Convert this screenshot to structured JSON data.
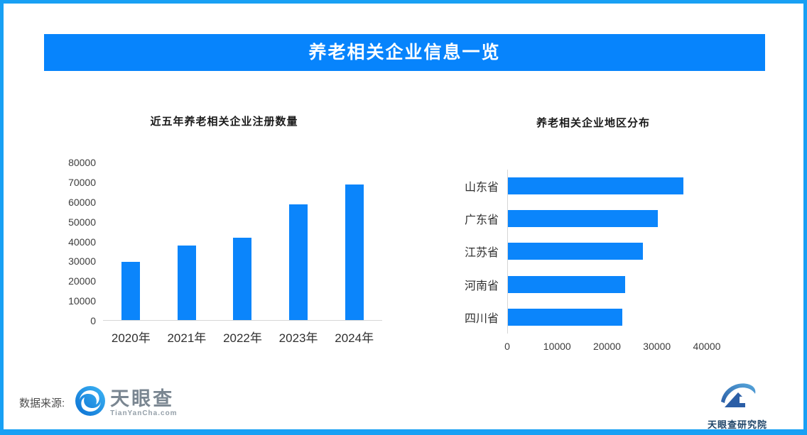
{
  "banner": {
    "title": "养老相关企业信息一览"
  },
  "chart_data": [
    {
      "type": "bar",
      "orientation": "vertical",
      "title": "近五年养老相关企业注册数量",
      "categories": [
        "2020年",
        "2021年",
        "2022年",
        "2023年",
        "2024年"
      ],
      "values": [
        29500,
        37500,
        41500,
        58500,
        68500
      ],
      "xlabel": "",
      "ylabel": "",
      "ylim": [
        0,
        80000
      ],
      "ytick_step": 10000,
      "ytick_labels": [
        "0",
        "10000",
        "20000",
        "30000",
        "40000",
        "50000",
        "60000",
        "70000",
        "80000"
      ],
      "bar_color": "#0b85fb",
      "grid": false,
      "legend": false
    },
    {
      "type": "bar",
      "orientation": "horizontal",
      "title": "养老相关企业地区分布",
      "categories": [
        "山东省",
        "广东省",
        "江苏省",
        "河南省",
        "四川省"
      ],
      "values": [
        35200,
        30000,
        27000,
        23500,
        22900
      ],
      "xlabel": "",
      "ylabel": "",
      "xlim": [
        0,
        40000
      ],
      "xtick_step": 10000,
      "xtick_labels": [
        "0",
        "10000",
        "20000",
        "30000",
        "40000"
      ],
      "bar_color": "#0b85fb",
      "grid": false,
      "legend": false
    }
  ],
  "footer": {
    "source_label": "数据来源:",
    "tianyancha_logo": {
      "icon": "tianyancha-eye-icon",
      "name": "天眼查",
      "domain": "TianYanCha.com"
    },
    "institute_logo": {
      "icon": "tianyancha-institute-icon",
      "name": "天眼查研究院"
    }
  },
  "colors": {
    "page_border": "#18a0f4",
    "banner_bg": "#0784fc",
    "banner_text": "#ffffff",
    "bar": "#0b85fb",
    "axis_line": "#d6d6d6",
    "tick_text": "#3d3d3d",
    "chart_title_text": "#1a1a1a"
  }
}
